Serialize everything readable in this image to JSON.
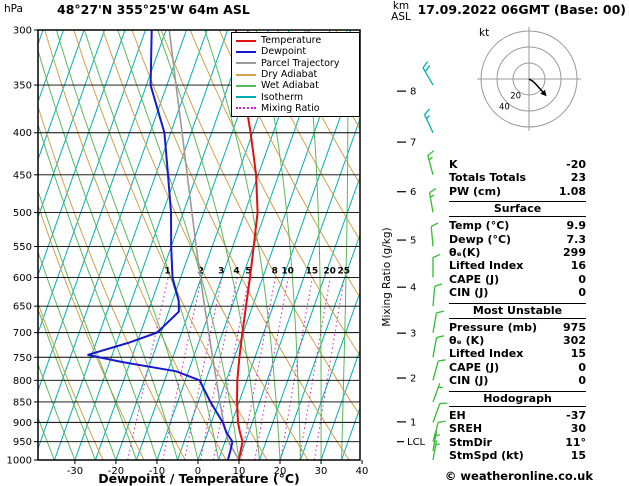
{
  "header": {
    "station": "48°27'N 355°25'W 64m ASL",
    "datetime": "17.09.2022 06GMT (Base: 00)"
  },
  "copyright": "© weatheronline.co.uk",
  "legend": {
    "items": [
      {
        "label": "Temperature",
        "color": "#e01010",
        "style": "solid"
      },
      {
        "label": "Dewpoint",
        "color": "#1818cc",
        "style": "solid"
      },
      {
        "label": "Parcel Trajectory",
        "color": "#9a9a9a",
        "style": "solid"
      },
      {
        "label": "Dry Adiabat",
        "color": "#d2a24c",
        "style": "solid"
      },
      {
        "label": "Wet Adiabat",
        "color": "#5cb85c",
        "style": "solid"
      },
      {
        "label": "Isotherm",
        "color": "#00b0b0",
        "style": "solid"
      },
      {
        "label": "Mixing Ratio",
        "color": "#cc22cc",
        "style": "dotted"
      }
    ]
  },
  "hodograph": {
    "unit": "kt",
    "rings_kt": [
      20,
      40,
      60
    ],
    "ring_labels": [
      {
        "value": "20",
        "radius_kt": 20
      },
      {
        "value": "40",
        "radius_kt": 40
      }
    ],
    "trace_kt": [
      [
        0,
        0
      ],
      [
        5,
        -3
      ],
      [
        10,
        -8
      ],
      [
        17,
        -16
      ]
    ]
  },
  "info_panel": {
    "indices": [
      {
        "label": "K",
        "value": "-20"
      },
      {
        "label": "Totals Totals",
        "value": "23"
      },
      {
        "label": "PW (cm)",
        "value": "1.08"
      }
    ],
    "surface": {
      "title": "Surface",
      "rows": [
        {
          "label": "Temp (°C)",
          "value": "9.9"
        },
        {
          "label": "Dewp (°C)",
          "value": "7.3"
        },
        {
          "label": "θₑ(K)",
          "value": "299"
        },
        {
          "label": "Lifted Index",
          "value": "16"
        },
        {
          "label": "CAPE (J)",
          "value": "0"
        },
        {
          "label": "CIN (J)",
          "value": "0"
        }
      ]
    },
    "most_unstable": {
      "title": "Most Unstable",
      "rows": [
        {
          "label": "Pressure (mb)",
          "value": "975"
        },
        {
          "label": "θₑ (K)",
          "value": "302"
        },
        {
          "label": "Lifted Index",
          "value": "15"
        },
        {
          "label": "CAPE (J)",
          "value": "0"
        },
        {
          "label": "CIN (J)",
          "value": "0"
        }
      ]
    },
    "hodograph_section": {
      "title": "Hodograph",
      "rows": [
        {
          "label": "EH",
          "value": "-37"
        },
        {
          "label": "SREH",
          "value": "30"
        },
        {
          "label": "StmDir",
          "value": "11°"
        },
        {
          "label": "StmSpd (kt)",
          "value": "15"
        }
      ]
    }
  },
  "chart_data": {
    "type": "line",
    "subtype": "skew-t-log-p-sounding",
    "xlabel": "Dewpoint / Temperature (°C)",
    "ylabel": "hPa",
    "y2label_top": "km",
    "y2label_bottom": "ASL",
    "mixing_axis_label": "Mixing Ratio (g/kg)",
    "lcl_label": "LCL",
    "lcl_pressure": 950,
    "pressure_ticks": [
      300,
      350,
      400,
      450,
      500,
      550,
      600,
      650,
      700,
      750,
      800,
      850,
      900,
      950,
      1000
    ],
    "temp_ticks": [
      -30,
      -20,
      -10,
      0,
      10,
      20,
      30,
      40
    ],
    "km_ticks": [
      1,
      2,
      3,
      4,
      5,
      6,
      7,
      8
    ],
    "p_range": [
      300,
      1000
    ],
    "t_range": [
      -39,
      39.5
    ],
    "skew": 0.355,
    "isotherm_step": 5,
    "dry_adiabat_step": 10,
    "wet_adiabat_step": 5,
    "mixing_ratio_lines": [
      1,
      2,
      3,
      4,
      5,
      8,
      10,
      15,
      20,
      25
    ],
    "colors": {
      "isotherm": "#00b0b0",
      "dry_adiabat": "#d2a24c",
      "wet_adiabat": "#5cb85c",
      "mixing_ratio": "#cc22cc",
      "grid": "#000000"
    },
    "series": {
      "temperature": {
        "name": "Temperature",
        "color": "#e01010",
        "points": [
          [
            1000,
            10.0
          ],
          [
            975,
            9.6
          ],
          [
            950,
            9.3
          ],
          [
            925,
            7.8
          ],
          [
            900,
            6.5
          ],
          [
            850,
            4.5
          ],
          [
            800,
            2.7
          ],
          [
            750,
            1.2
          ],
          [
            700,
            -0.2
          ],
          [
            650,
            -1.6
          ],
          [
            600,
            -3.1
          ],
          [
            550,
            -4.9
          ],
          [
            500,
            -6.9
          ],
          [
            450,
            -10.5
          ],
          [
            400,
            -15.5
          ],
          [
            350,
            -21.5
          ],
          [
            300,
            -28.0
          ]
        ]
      },
      "dewpoint": {
        "name": "Dewpoint",
        "color": "#1818cc",
        "points": [
          [
            1000,
            7.3
          ],
          [
            975,
            7.1
          ],
          [
            950,
            6.8
          ],
          [
            925,
            4.5
          ],
          [
            900,
            2.8
          ],
          [
            850,
            -2.0
          ],
          [
            800,
            -6.5
          ],
          [
            780,
            -13.0
          ],
          [
            760,
            -27.0
          ],
          [
            745,
            -36.0
          ],
          [
            720,
            -27.0
          ],
          [
            700,
            -21.0
          ],
          [
            660,
            -17.5
          ],
          [
            640,
            -18.5
          ],
          [
            600,
            -22.0
          ],
          [
            550,
            -25.0
          ],
          [
            500,
            -28.0
          ],
          [
            450,
            -32.0
          ],
          [
            400,
            -36.5
          ],
          [
            350,
            -44.0
          ],
          [
            300,
            -48.5
          ]
        ]
      },
      "parcel": {
        "name": "Parcel Trajectory",
        "color": "#9a9a9a",
        "points": [
          [
            1000,
            10.0
          ],
          [
            950,
            5.8
          ],
          [
            900,
            3.0
          ],
          [
            850,
            0.3
          ],
          [
            800,
            -2.4
          ],
          [
            750,
            -5.3
          ],
          [
            700,
            -8.4
          ],
          [
            650,
            -11.7
          ],
          [
            600,
            -15.2
          ],
          [
            550,
            -18.9
          ],
          [
            500,
            -22.9
          ],
          [
            450,
            -27.3
          ],
          [
            400,
            -32.2
          ],
          [
            350,
            -37.8
          ],
          [
            300,
            -44.2
          ]
        ]
      }
    },
    "wind_barbs": [
      {
        "p": 350,
        "speed": 20,
        "dir": 330,
        "color": "#00b0b0"
      },
      {
        "p": 400,
        "speed": 15,
        "dir": 335,
        "color": "#00b0b0"
      },
      {
        "p": 450,
        "speed": 15,
        "dir": 345,
        "color": "#2fbf2f"
      },
      {
        "p": 500,
        "speed": 15,
        "dir": 350,
        "color": "#2fbf2f"
      },
      {
        "p": 550,
        "speed": 10,
        "dir": 355,
        "color": "#2fbf2f"
      },
      {
        "p": 600,
        "speed": 10,
        "dir": 0,
        "color": "#2fbf2f"
      },
      {
        "p": 650,
        "speed": 10,
        "dir": 5,
        "color": "#2fbf2f"
      },
      {
        "p": 700,
        "speed": 10,
        "dir": 10,
        "color": "#2fbf2f"
      },
      {
        "p": 750,
        "speed": 10,
        "dir": 10,
        "color": "#2fbf2f"
      },
      {
        "p": 800,
        "speed": 10,
        "dir": 15,
        "color": "#2fbf2f"
      },
      {
        "p": 850,
        "speed": 5,
        "dir": 20,
        "color": "#2fbf2f"
      },
      {
        "p": 900,
        "speed": 10,
        "dir": 20,
        "color": "#2fbf2f"
      },
      {
        "p": 950,
        "speed": 10,
        "dir": 15,
        "color": "#2fbf2f"
      },
      {
        "p": 975,
        "speed": 5,
        "dir": 10,
        "color": "#2fbf2f"
      },
      {
        "p": 1000,
        "speed": 5,
        "dir": 10,
        "color": "#2fbf2f"
      }
    ]
  }
}
